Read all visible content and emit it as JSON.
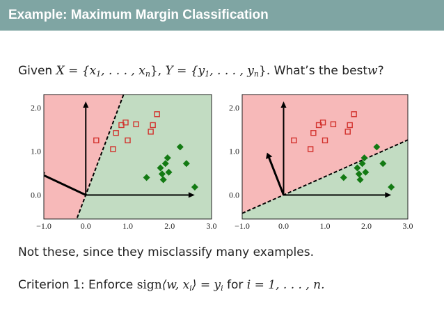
{
  "slide": {
    "title": "Example:  Maximum Margin Classification",
    "given": "Given",
    "X_eq": "X = {x",
    "dots1": ", . . . , x",
    "rb1": "},",
    "Y_eq": "Y = {y",
    "dots2": ", . . . , y",
    "rb2": "}.",
    "whats_best": "What’s the best",
    "w": "w",
    "q": "?",
    "not_these": "Not these, since they misclassify many examples.",
    "criterion_label": "Criterion 1:  Enforce",
    "sign": "sign",
    "inner": "⟨w, x",
    "inner_close": "⟩ = y",
    "for_text": "for",
    "range": "i = 1, . . . , n.",
    "sub_1": "1",
    "sub_n": "n",
    "sub_i": "i"
  },
  "colors": {
    "red_region": "#f7b9b9",
    "green_region": "#c2dcc2",
    "red_marker": "#d2312c",
    "green_marker": "#137a13",
    "title_bg": "#7fa5a3"
  },
  "chart_data": [
    {
      "type": "scatter",
      "xlim": [
        -1.0,
        3.0
      ],
      "ylim": [
        -0.55,
        2.3
      ],
      "xticks": [
        "−1.0",
        "0.0",
        "1.0",
        "2.0",
        "3.0"
      ],
      "yticks": [
        "0.0",
        "1.0",
        "2.0"
      ],
      "boundary": "dashed line through origin, steep, positive slope",
      "w_vector": [
        -1.0,
        0.45
      ],
      "series": [
        {
          "marker": "square-open",
          "color": "red",
          "points": [
            [
              0.25,
              1.25
            ],
            [
              0.65,
              1.05
            ],
            [
              0.72,
              1.42
            ],
            [
              0.85,
              1.6
            ],
            [
              0.95,
              1.66
            ],
            [
              1.0,
              1.25
            ],
            [
              1.2,
              1.62
            ],
            [
              1.55,
              1.45
            ],
            [
              1.6,
              1.6
            ],
            [
              1.7,
              1.85
            ]
          ]
        },
        {
          "marker": "diamond-filled",
          "color": "green",
          "points": [
            [
              1.45,
              0.4
            ],
            [
              1.78,
              0.62
            ],
            [
              1.82,
              0.48
            ],
            [
              1.85,
              0.35
            ],
            [
              1.9,
              0.72
            ],
            [
              1.95,
              0.85
            ],
            [
              1.98,
              0.52
            ],
            [
              2.25,
              1.1
            ],
            [
              2.4,
              0.72
            ],
            [
              2.6,
              0.18
            ]
          ]
        }
      ]
    },
    {
      "type": "scatter",
      "xlim": [
        -1.0,
        3.0
      ],
      "ylim": [
        -0.55,
        2.3
      ],
      "xticks": [
        "−1.0",
        "0.0",
        "1.0",
        "2.0",
        "3.0"
      ],
      "yticks": [
        "0.0",
        "1.0",
        "2.0"
      ],
      "boundary": "dashed line through origin, shallow, positive slope",
      "w_vector": [
        -0.35,
        0.85
      ],
      "series": [
        {
          "marker": "square-open",
          "color": "red",
          "points": [
            [
              0.25,
              1.25
            ],
            [
              0.65,
              1.05
            ],
            [
              0.72,
              1.42
            ],
            [
              0.85,
              1.6
            ],
            [
              0.95,
              1.66
            ],
            [
              1.0,
              1.25
            ],
            [
              1.2,
              1.62
            ],
            [
              1.55,
              1.45
            ],
            [
              1.6,
              1.6
            ],
            [
              1.7,
              1.85
            ]
          ]
        },
        {
          "marker": "diamond-filled",
          "color": "green",
          "points": [
            [
              1.45,
              0.4
            ],
            [
              1.78,
              0.62
            ],
            [
              1.82,
              0.48
            ],
            [
              1.85,
              0.35
            ],
            [
              1.9,
              0.72
            ],
            [
              1.95,
              0.85
            ],
            [
              1.98,
              0.52
            ],
            [
              2.25,
              1.1
            ],
            [
              2.4,
              0.72
            ],
            [
              2.6,
              0.18
            ]
          ]
        }
      ]
    }
  ]
}
